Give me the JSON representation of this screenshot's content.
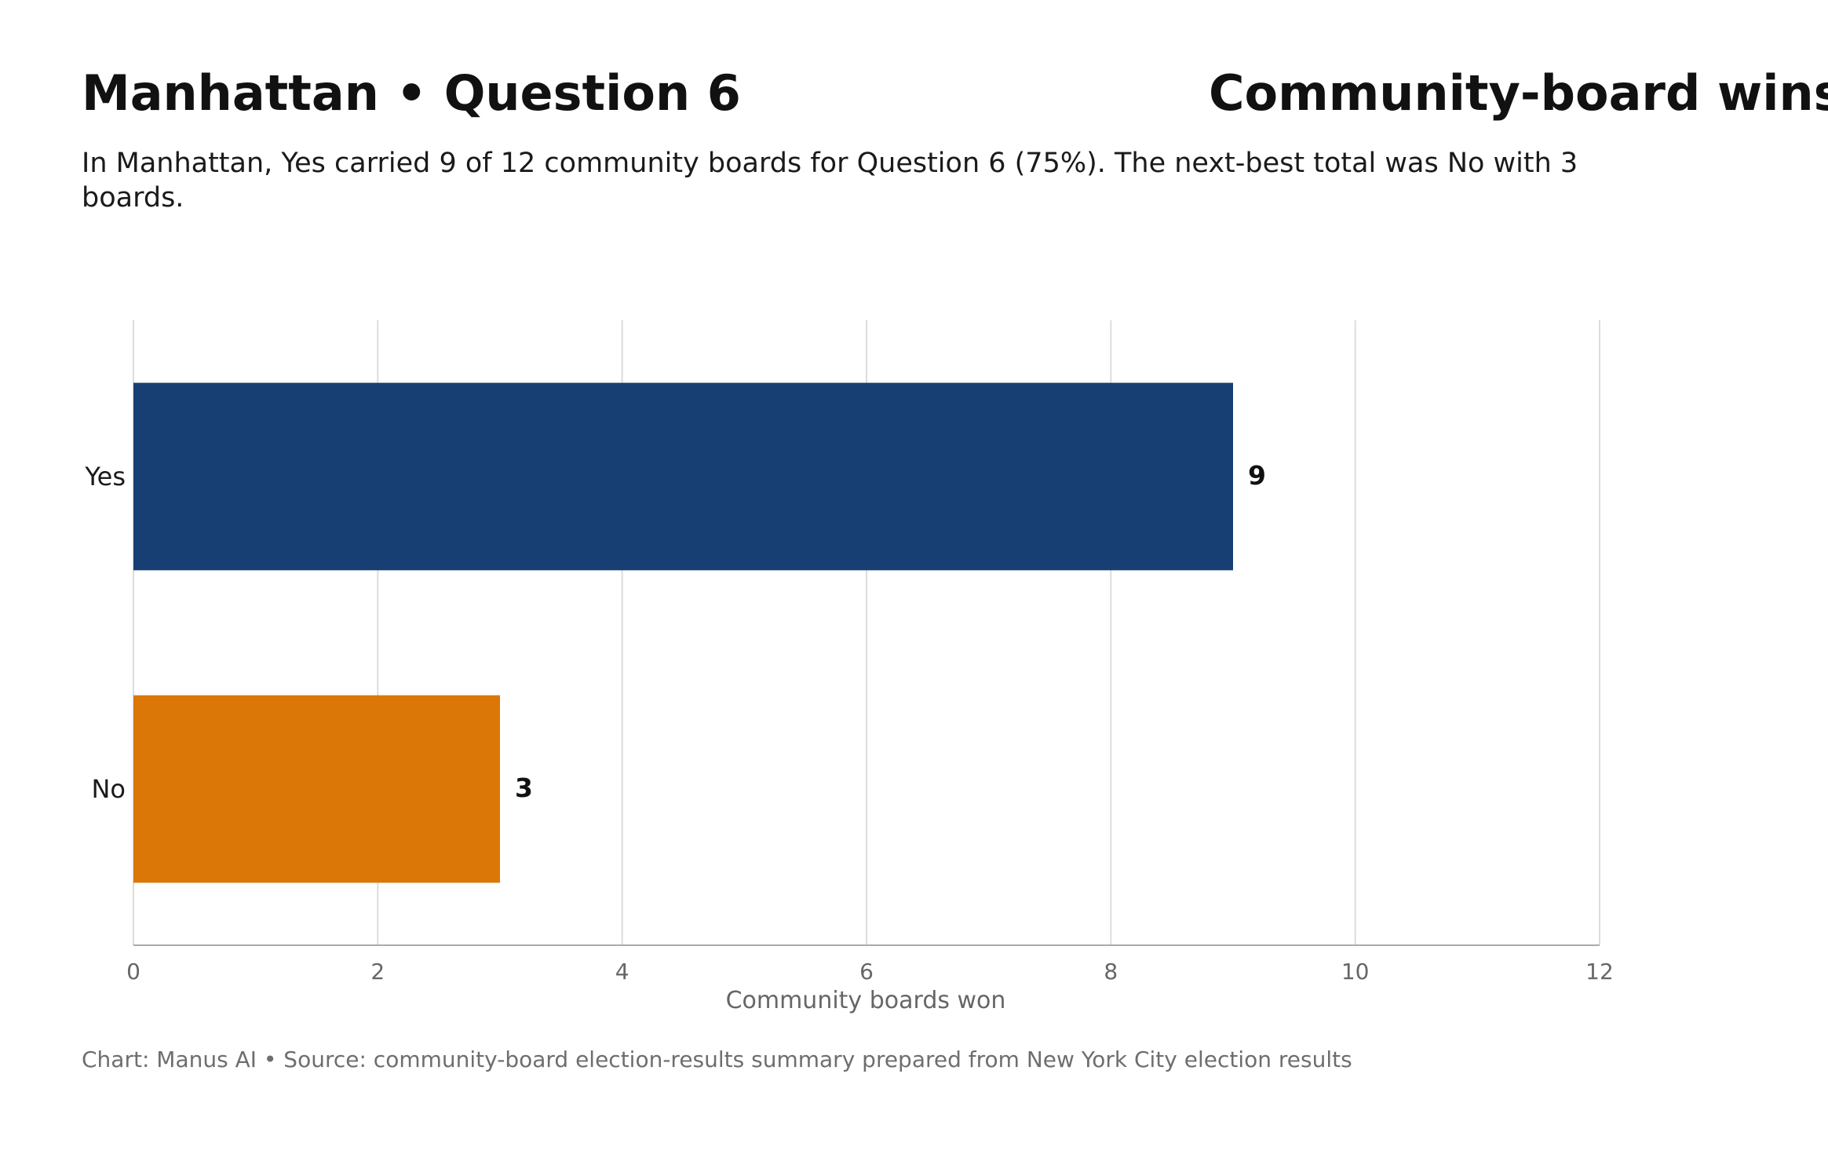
{
  "header": {
    "title": "Manhattan • Question 6",
    "right_title": "Community-board wins",
    "subtitle_line1": "In Manhattan, Yes carried 9 of 12 community boards for Question 6 (75%). The next-best total was No with 3",
    "subtitle_line2": "boards."
  },
  "footer": {
    "source": "Chart: Manus AI • Source: community-board election-results summary prepared from New York City election results"
  },
  "chart_data": {
    "type": "bar",
    "orientation": "horizontal",
    "categories": [
      "Yes",
      "No"
    ],
    "values": [
      9,
      3
    ],
    "bar_colors": [
      "#173f73",
      "#db7706"
    ],
    "title": "Manhattan • Question 6",
    "xlabel": "Community boards won",
    "ylabel": "",
    "xlim": [
      0,
      12
    ],
    "xticks": [
      0,
      2,
      4,
      6,
      8,
      10,
      12
    ],
    "xtick_labels": [
      "0",
      "2",
      "4",
      "6",
      "8",
      "10",
      "12"
    ],
    "data_labels": [
      "9",
      "3"
    ],
    "grid": "vertical",
    "legend": "none"
  }
}
